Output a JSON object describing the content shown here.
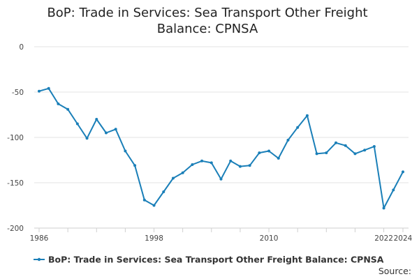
{
  "chart_data": {
    "type": "line",
    "title_line1": "BoP: Trade in Services: Sea Transport Other Freight",
    "title_line2": "Balance: CPNSA",
    "xlabel": "",
    "ylabel": "",
    "ylim": [
      -200,
      0
    ],
    "yticks": [
      0,
      -50,
      -100,
      -150,
      -200
    ],
    "xlim": [
      1986,
      2024
    ],
    "xtick_labels": [
      "1986",
      "1998",
      "2010",
      "2022",
      "2024"
    ],
    "grid": true,
    "legend_position": "bottom",
    "source_label": "Source:",
    "series": [
      {
        "name": "BoP: Trade in Services: Sea Transport Other Freight Balance: CPNSA",
        "color": "#1a7fb8",
        "x": [
          1986,
          1987,
          1988,
          1989,
          1990,
          1991,
          1992,
          1993,
          1994,
          1995,
          1996,
          1997,
          1998,
          1999,
          2000,
          2001,
          2002,
          2003,
          2004,
          2005,
          2006,
          2007,
          2008,
          2009,
          2010,
          2011,
          2012,
          2013,
          2014,
          2015,
          2016,
          2017,
          2018,
          2019,
          2020,
          2021,
          2022,
          2023,
          2024
        ],
        "values": [
          -49,
          -46,
          -63,
          -69,
          -85,
          -101,
          -80,
          -95,
          -91,
          -115,
          -131,
          -169,
          -175,
          -160,
          -145,
          -139,
          -130,
          -126,
          -128,
          -146,
          -126,
          -132,
          -131,
          -117,
          -115,
          -123,
          -103,
          -89,
          -76,
          -118,
          -117,
          -106,
          -109,
          -118,
          -114,
          -110,
          -178,
          -158,
          -138
        ]
      }
    ]
  }
}
